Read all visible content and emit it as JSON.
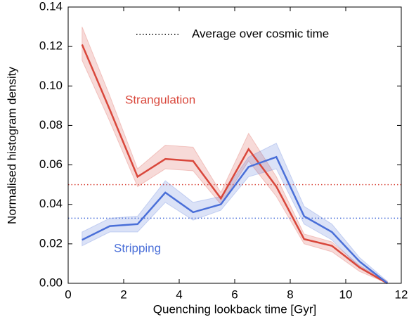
{
  "chart_data": {
    "type": "line",
    "xlabel": "Quenching lookback time [Gyr]",
    "ylabel": "Normalised histogram density",
    "x": [
      0.5,
      1.5,
      2.5,
      3.5,
      4.5,
      5.5,
      6.5,
      7.5,
      8.5,
      9.5,
      10.5,
      11.5
    ],
    "series": [
      {
        "name": "Strangulation",
        "color": "#d9473b",
        "values": [
          0.121,
          0.088,
          0.054,
          0.063,
          0.062,
          0.043,
          0.068,
          0.049,
          0.0224,
          0.019,
          0.008,
          0.0
        ],
        "upper": [
          0.13,
          0.095,
          0.058,
          0.07,
          0.069,
          0.046,
          0.076,
          0.054,
          0.025,
          0.021,
          0.009,
          0.001
        ],
        "lower": [
          0.113,
          0.082,
          0.049,
          0.058,
          0.057,
          0.04,
          0.062,
          0.044,
          0.02,
          0.016,
          0.006,
          0.0
        ],
        "average": 0.05
      },
      {
        "name": "Stripping",
        "color": "#4a6fd8",
        "values": [
          0.022,
          0.029,
          0.03,
          0.046,
          0.036,
          0.04,
          0.059,
          0.064,
          0.034,
          0.026,
          0.011,
          0.0
        ],
        "upper": [
          0.026,
          0.033,
          0.034,
          0.052,
          0.041,
          0.044,
          0.064,
          0.071,
          0.039,
          0.03,
          0.013,
          0.001
        ],
        "lower": [
          0.019,
          0.026,
          0.026,
          0.041,
          0.032,
          0.037,
          0.054,
          0.058,
          0.03,
          0.022,
          0.008,
          0.0
        ],
        "average": 0.033
      }
    ],
    "average_label": "Average over cosmic time",
    "xlim": [
      0,
      12
    ],
    "xticks": [
      0,
      2,
      4,
      6,
      8,
      10,
      12
    ],
    "ylim": [
      0,
      0.14
    ],
    "yticks": [
      {
        "value": 0,
        "label": "0.00"
      },
      0.02,
      0.04,
      0.06,
      0.08,
      {
        "value": 0.1,
        "label": "0.10"
      },
      0.12,
      0.14
    ]
  }
}
